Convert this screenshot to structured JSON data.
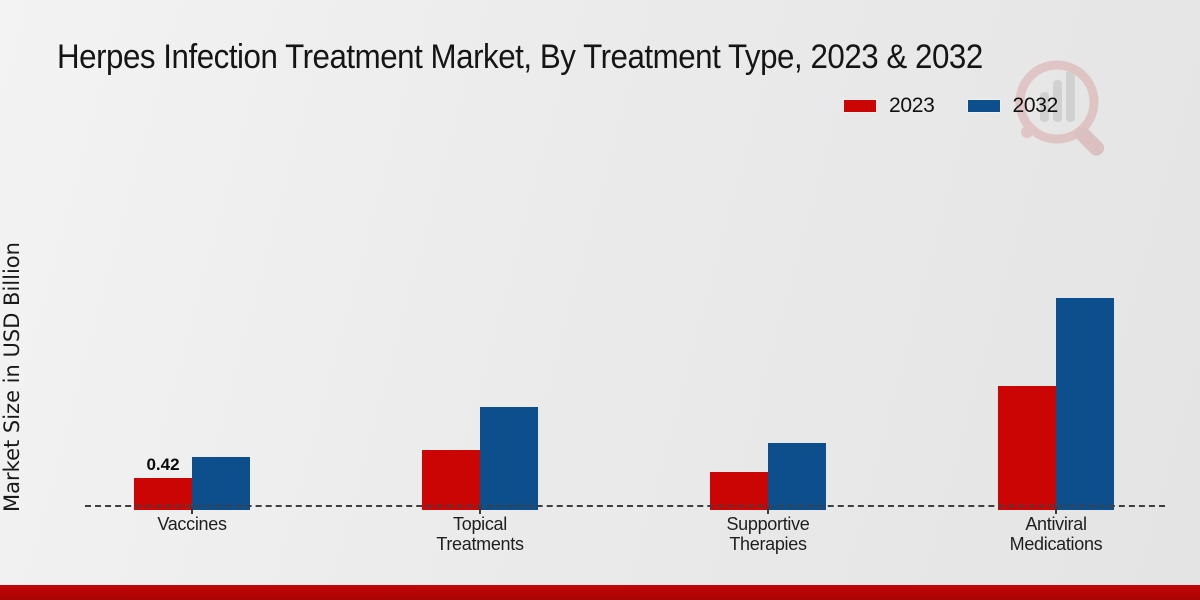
{
  "chart_data": {
    "type": "bar",
    "title": "Herpes Infection Treatment Market, By Treatment Type, 2023 & 2032",
    "ylabel": "Market Size in USD Billion",
    "xlabel": "",
    "categories": [
      "Vaccines",
      "Topical\nTreatments",
      "Supportive\nTherapies",
      "Antiviral\nMedications"
    ],
    "series": [
      {
        "name": "2023",
        "color": "#cb0404",
        "values": [
          0.42,
          0.82,
          0.51,
          1.75
        ]
      },
      {
        "name": "2032",
        "color": "#0d4e8d",
        "values": [
          0.73,
          1.45,
          0.93,
          3.03
        ]
      }
    ],
    "value_labels": [
      {
        "series_index": 0,
        "category_index": 0,
        "text": "0.42"
      }
    ],
    "ylim": [
      0,
      3.6
    ],
    "grid": false,
    "legend_position": "top-right",
    "baseline_style": "dashed"
  },
  "footer": {
    "accent_color": "#bb0404"
  },
  "icons": {
    "watermark": "magnifier-bar-chart-logo"
  }
}
